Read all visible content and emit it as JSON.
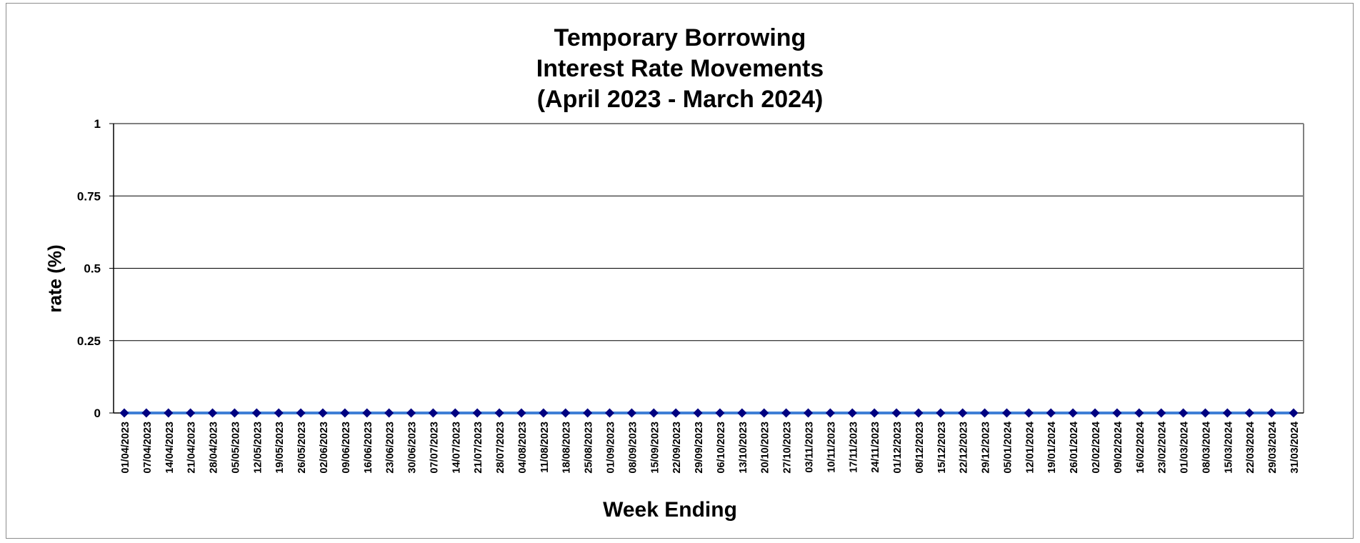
{
  "chart_data": {
    "type": "line",
    "title": [
      "Temporary Borrowing",
      "Interest Rate Movements",
      "(April 2023 - March 2024)"
    ],
    "xlabel": "Week Ending",
    "ylabel": "rate (%)",
    "ylim": [
      0,
      1
    ],
    "yticks": [
      "0",
      "0.25",
      "0.5",
      "0.75",
      "1"
    ],
    "categories": [
      "01/04/2023",
      "07/04/2023",
      "14/04/2023",
      "21/04/2023",
      "28/04/2023",
      "05/05/2023",
      "12/05/2023",
      "19/05/2023",
      "26/05/2023",
      "02/06/2023",
      "09/06/2023",
      "16/06/2023",
      "23/06/2023",
      "30/06/2023",
      "07/07/2023",
      "14/07/2023",
      "21/07/2023",
      "28/07/2023",
      "04/08/2023",
      "11/08/2023",
      "18/08/2023",
      "25/08/2023",
      "01/09/2023",
      "08/09/2023",
      "15/09/2023",
      "22/09/2023",
      "29/09/2023",
      "06/10/2023",
      "13/10/2023",
      "20/10/2023",
      "27/10/2023",
      "03/11/2023",
      "10/11/2023",
      "17/11/2023",
      "24/11/2023",
      "01/12/2023",
      "08/12/2023",
      "15/12/2023",
      "22/12/2023",
      "29/12/2023",
      "05/01/2024",
      "12/01/2024",
      "19/01/2024",
      "26/01/2024",
      "02/02/2024",
      "09/02/2024",
      "16/02/2024",
      "23/02/2024",
      "01/03/2024",
      "08/03/2024",
      "15/03/2024",
      "22/03/2024",
      "29/03/2024",
      "31/03/2024"
    ],
    "series": [
      {
        "name": "",
        "values": [
          0,
          0,
          0,
          0,
          0,
          0,
          0,
          0,
          0,
          0,
          0,
          0,
          0,
          0,
          0,
          0,
          0,
          0,
          0,
          0,
          0,
          0,
          0,
          0,
          0,
          0,
          0,
          0,
          0,
          0,
          0,
          0,
          0,
          0,
          0,
          0,
          0,
          0,
          0,
          0,
          0,
          0,
          0,
          0,
          0,
          0,
          0,
          0,
          0,
          0,
          0,
          0,
          0,
          0
        ]
      }
    ],
    "grid": true,
    "colors": {
      "line": "#3f7fd6",
      "marker": "#000080",
      "grid": "#000000",
      "axis": "#808080"
    }
  }
}
